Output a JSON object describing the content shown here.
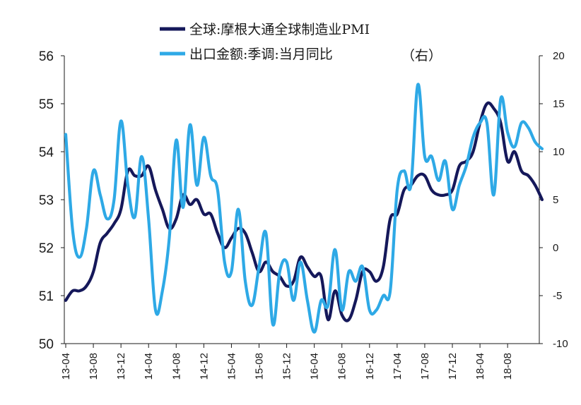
{
  "chart_data": {
    "type": "line",
    "legend_position": "top",
    "series": [
      {
        "name": "全球:摩根大通全球制造业PMI",
        "axis": "left",
        "color": "#15185a",
        "values": [
          50.9,
          51.1,
          51.1,
          51.2,
          51.5,
          52.1,
          52.3,
          52.5,
          52.8,
          53.6,
          53.5,
          53.5,
          53.7,
          53.2,
          52.8,
          52.4,
          52.6,
          53.1,
          52.9,
          53.0,
          52.7,
          52.7,
          52.3,
          52.0,
          52.2,
          52.4,
          52.3,
          51.9,
          51.5,
          51.7,
          51.5,
          51.4,
          51.2,
          51.3,
          51.8,
          51.6,
          51.4,
          51.4,
          50.5,
          51.1,
          50.6,
          50.5,
          50.9,
          51.5,
          51.5,
          51.3,
          51.6,
          52.6,
          52.7,
          53.2,
          53.3,
          53.5,
          53.5,
          53.2,
          53.1,
          53.1,
          53.2,
          53.7,
          53.8,
          54.0,
          54.6,
          55.0,
          54.9,
          54.6,
          53.8,
          54.0,
          53.6,
          53.5,
          53.3,
          53.0
        ]
      },
      {
        "name": "出口金额:季调:当月同比",
        "axis": "right",
        "color": "#2ea9e6",
        "values": [
          11.8,
          1.8,
          -1.0,
          2.0,
          8.0,
          5.5,
          3.0,
          5.0,
          13.2,
          6.5,
          3.2,
          9.5,
          3.0,
          -6.5,
          -4.5,
          1.0,
          11.2,
          4.2,
          12.8,
          6.5,
          11.5,
          7.5,
          6.0,
          -1.5,
          -2.5,
          4.0,
          -3.5,
          -6.0,
          -2.0,
          1.5,
          -8.0,
          -2.5,
          -1.5,
          -5.5,
          -1.5,
          -5.5,
          -8.8,
          -5.5,
          -6.0,
          -0.2,
          -6.5,
          -2.5,
          -3.5,
          -2.0,
          -6.5,
          -6.5,
          -5.0,
          -4.5,
          6.0,
          8.0,
          6.5,
          17.0,
          9.5,
          9.5,
          7.0,
          9.0,
          4.0,
          6.5,
          8.5,
          11.5,
          13.0,
          13.0,
          5.5,
          15.5,
          12.0,
          10.5,
          13.0,
          12.5,
          11.0,
          10.3
        ]
      }
    ],
    "x_start": "13-04",
    "x_tick_labels": [
      "13-04",
      "13-08",
      "13-12",
      "14-04",
      "14-08",
      "14-12",
      "15-04",
      "15-08",
      "15-12",
      "16-04",
      "16-08",
      "16-12",
      "17-04",
      "17-08",
      "17-12",
      "18-04",
      "18-08"
    ],
    "left_axis": {
      "range": [
        50,
        56
      ],
      "ticks": [
        "50",
        "51",
        "52",
        "53",
        "54",
        "55",
        "56"
      ]
    },
    "right_axis": {
      "range": [
        -10,
        20
      ],
      "ticks": [
        "-10",
        "-5",
        "0",
        "5",
        "10",
        "15",
        "20"
      ],
      "note": "（右）"
    },
    "grid": false
  }
}
